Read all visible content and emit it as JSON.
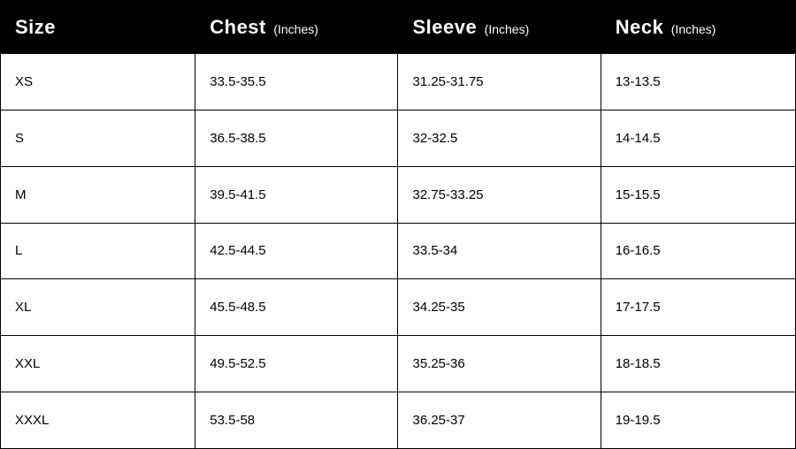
{
  "table": {
    "type": "table",
    "background_color": "#ffffff",
    "border_color": "#000000",
    "header_bg": "#000000",
    "header_text_color": "#ffffff",
    "cell_text_color": "#000000",
    "header_main_fontsize": 22,
    "header_unit_fontsize": 14,
    "cell_fontsize": 15,
    "columns": [
      {
        "main": "Size",
        "unit": ""
      },
      {
        "main": "Chest",
        "unit": "(Inches)"
      },
      {
        "main": "Sleeve",
        "unit": "(Inches)"
      },
      {
        "main": "Neck",
        "unit": "(Inches)"
      }
    ],
    "rows": [
      [
        "XS",
        "33.5-35.5",
        "31.25-31.75",
        "13-13.5"
      ],
      [
        "S",
        "36.5-38.5",
        "32-32.5",
        "14-14.5"
      ],
      [
        "M",
        "39.5-41.5",
        "32.75-33.25",
        "15-15.5"
      ],
      [
        "L",
        "42.5-44.5",
        "33.5-34",
        "16-16.5"
      ],
      [
        "XL",
        "45.5-48.5",
        "34.25-35",
        "17-17.5"
      ],
      [
        "XXL",
        "49.5-52.5",
        "35.25-36",
        "18-18.5"
      ],
      [
        "XXXL",
        "53.5-58",
        "36.25-37",
        "19-19.5"
      ]
    ]
  }
}
